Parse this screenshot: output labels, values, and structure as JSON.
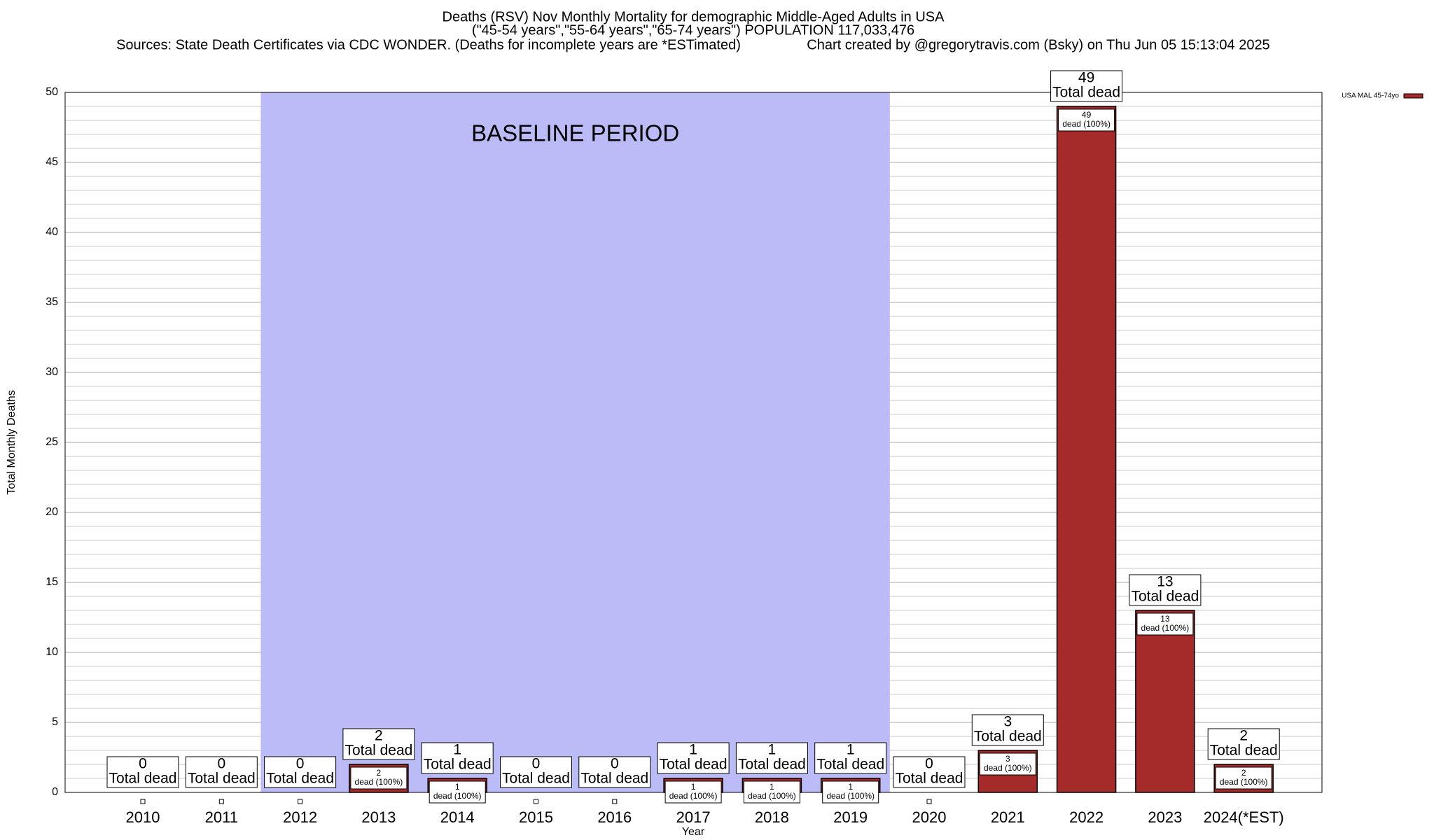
{
  "chart_data": {
    "type": "bar",
    "title": "Deaths (RSV) Nov Monthly Mortality for demographic Middle-Aged Adults in USA",
    "subtitle": "(\"45-54 years\",\"55-64 years\",\"65-74 years\") POPULATION 117,033,476",
    "sources": "Sources: State Death Certificates via CDC WONDER. (Deaths for incomplete years are *ESTimated)",
    "credit": "Chart created by @gregorytravis.com (Bsky) on Thu Jun 05 15:13:04 2025",
    "x_label": "Year",
    "y_label": "Total Monthly Deaths",
    "categories": [
      "2010",
      "2011",
      "2012",
      "2013",
      "2014",
      "2015",
      "2016",
      "2017",
      "2018",
      "2019",
      "2020",
      "2021",
      "2022",
      "2023",
      "2024(*EST)"
    ],
    "series": [
      {
        "name": "USA MAL 45-74yo",
        "color": "#a52a2a",
        "values": [
          0,
          0,
          0,
          2,
          1,
          0,
          0,
          1,
          1,
          1,
          0,
          3,
          49,
          13,
          2
        ]
      }
    ],
    "total_label": "Total dead",
    "inner_label": "dead (100%)",
    "baseline": {
      "label": "BASELINE PERIOD",
      "start": "2012",
      "end": "2019",
      "color": "#bbbbf8"
    },
    "ylim": [
      0,
      50
    ],
    "yticks": [
      0,
      5,
      10,
      15,
      20,
      25,
      30,
      35,
      40,
      45,
      50
    ],
    "minor_yticks": [
      1,
      2,
      3,
      4,
      6,
      7,
      8,
      9,
      11,
      12,
      13,
      14,
      16,
      17,
      18,
      19,
      21,
      22,
      23,
      24,
      26,
      27,
      28,
      29,
      31,
      32,
      33,
      34,
      36,
      37,
      38,
      39,
      41,
      42,
      43,
      44,
      46,
      47,
      48,
      49
    ],
    "grid": true,
    "legend": "top-right"
  }
}
